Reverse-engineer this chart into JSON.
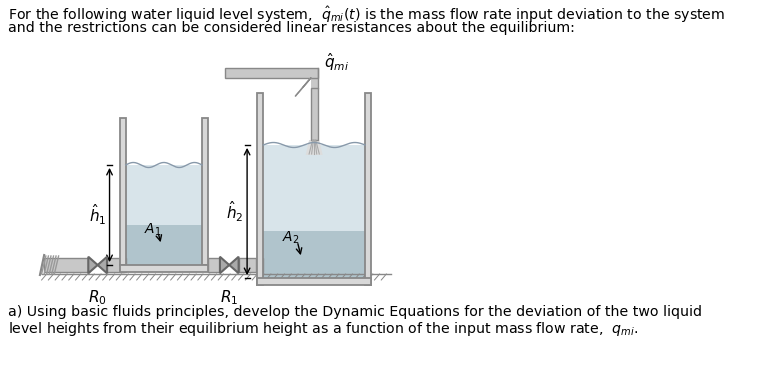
{
  "bg_color": "#ffffff",
  "tank_wall_color": "#888888",
  "water_color_light": "#d8e4ea",
  "water_color_dark": "#b0c4cc",
  "pipe_fill": "#c8c8c8",
  "pipe_edge": "#888888",
  "valve_color": "#666666",
  "label_h1": "$\\hat{h}_1$",
  "label_h2": "$\\hat{h}_2$",
  "label_qmi_top": "$\\hat{q}_{mi}$",
  "label_A1": "$A_1$",
  "label_A2": "$A_2$",
  "label_R0": "$R_0$",
  "label_R1": "$R_1$",
  "fig_width": 7.83,
  "fig_height": 3.73,
  "dpi": 100
}
